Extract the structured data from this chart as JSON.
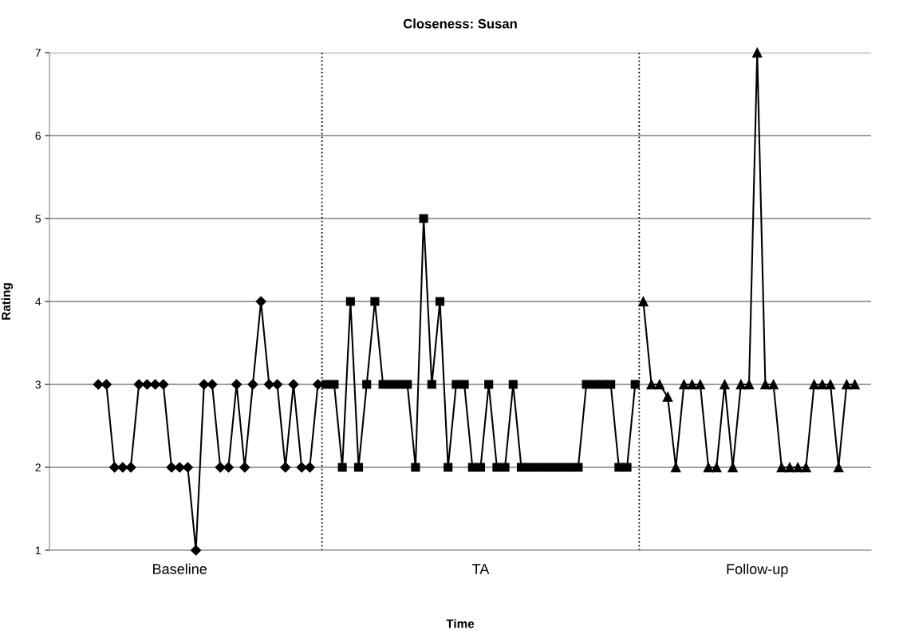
{
  "chart_data": {
    "type": "line",
    "title": "Closeness: Susan",
    "xlabel": "Time",
    "ylabel": "Rating",
    "categories": [
      null,
      null,
      null,
      null,
      null,
      null,
      null,
      null,
      null,
      null,
      "Baseline",
      null,
      null,
      null,
      null,
      null,
      null,
      null,
      null,
      null,
      null,
      null,
      null,
      null,
      null,
      null,
      null,
      null,
      null,
      null,
      null,
      null,
      null,
      null,
      null,
      null,
      null,
      null,
      null,
      null,
      null,
      null,
      null,
      null,
      null,
      null,
      null,
      "TA",
      null,
      null,
      null,
      null,
      null,
      null,
      null,
      null,
      null,
      null,
      null,
      null,
      null,
      null,
      null,
      null,
      null,
      null,
      null,
      null,
      null,
      null,
      null,
      null,
      null,
      null,
      null,
      null,
      null,
      null,
      null,
      null,
      null,
      "Follow-up",
      null,
      null,
      null,
      null,
      null,
      null,
      null,
      null,
      null,
      null,
      null,
      null
    ],
    "ylim": [
      1,
      7
    ],
    "yticks": [
      1,
      2,
      3,
      4,
      5,
      6,
      7
    ],
    "grid": "y",
    "line_style": "solid",
    "series": [
      {
        "color": "#000000",
        "marker": "diamond",
        "values": [
          3,
          3,
          2,
          2,
          2,
          3,
          3,
          3,
          3,
          2,
          2,
          2,
          1,
          3,
          3,
          2,
          2,
          3,
          2,
          3,
          4,
          3,
          3,
          2,
          3,
          2,
          2,
          3,
          null,
          null,
          null,
          null,
          null,
          null,
          null,
          null,
          null,
          null,
          null,
          null,
          null,
          null,
          null,
          null,
          null,
          null,
          null,
          null,
          null,
          null,
          null,
          null,
          null,
          null,
          null,
          null,
          null,
          null,
          null,
          null,
          null,
          null,
          null,
          null,
          null,
          null,
          null,
          null,
          null,
          null,
          null,
          null,
          null,
          null,
          null,
          null,
          null,
          null,
          null,
          null,
          null,
          null,
          null,
          null,
          null,
          null,
          null,
          null,
          null,
          null,
          null,
          null,
          null,
          null
        ]
      },
      {
        "color": "#000000",
        "marker": "square",
        "values": [
          null,
          null,
          null,
          null,
          null,
          null,
          null,
          null,
          null,
          null,
          null,
          null,
          null,
          null,
          null,
          null,
          null,
          null,
          null,
          null,
          null,
          null,
          null,
          null,
          null,
          null,
          null,
          null,
          3,
          3,
          2,
          4,
          2,
          3,
          4,
          3,
          3,
          3,
          3,
          2,
          5,
          3,
          4,
          2,
          3,
          3,
          2,
          2,
          3,
          2,
          2,
          3,
          2,
          2,
          2,
          2,
          2,
          2,
          2,
          2,
          3,
          3,
          3,
          3,
          2,
          2,
          3,
          null,
          null,
          null,
          null,
          null,
          null,
          null,
          null,
          null,
          null,
          null,
          null,
          null,
          null,
          null,
          null,
          null,
          null,
          null,
          null,
          null,
          null,
          null,
          null,
          null,
          null,
          null
        ]
      },
      {
        "color": "#000000",
        "marker": "triangle",
        "values": [
          null,
          null,
          null,
          null,
          null,
          null,
          null,
          null,
          null,
          null,
          null,
          null,
          null,
          null,
          null,
          null,
          null,
          null,
          null,
          null,
          null,
          null,
          null,
          null,
          null,
          null,
          null,
          null,
          null,
          null,
          null,
          null,
          null,
          null,
          null,
          null,
          null,
          null,
          null,
          null,
          null,
          null,
          null,
          null,
          null,
          null,
          null,
          null,
          null,
          null,
          null,
          null,
          null,
          null,
          null,
          null,
          null,
          null,
          null,
          null,
          null,
          null,
          null,
          null,
          null,
          null,
          null,
          4,
          3,
          3,
          2.85,
          2,
          3,
          3,
          3,
          2,
          2,
          3,
          2,
          3,
          3,
          7,
          3,
          3,
          2,
          2,
          2,
          2,
          3,
          3,
          3,
          2,
          3,
          3
        ]
      }
    ]
  }
}
